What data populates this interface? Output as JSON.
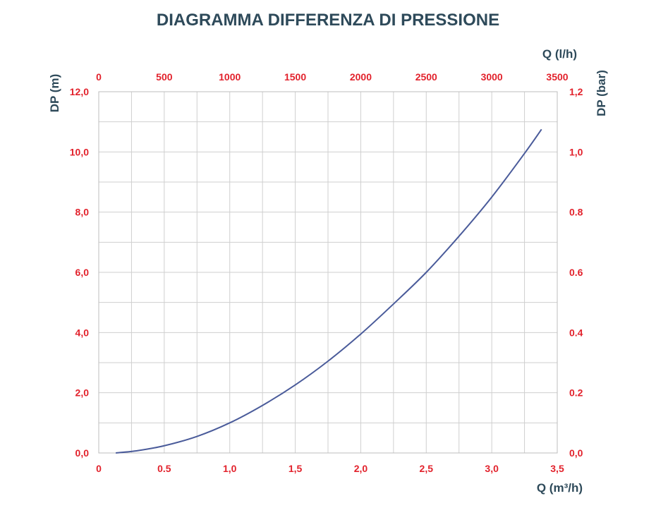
{
  "colors": {
    "title": "#2e4a5a",
    "tick": "#e2222c",
    "grid": "#cfcfcf",
    "curve": "#4a5b9a"
  },
  "chart_data": {
    "type": "line",
    "title": "DIAGRAMMA DIFFERENZA DI PRESSIONE",
    "xlabel": "Q (m³/h)",
    "x2label": "Q (l/h)",
    "ylabel": "DP (m)",
    "y2label": "DP (bar)",
    "xlim": [
      0,
      3.5
    ],
    "x2lim": [
      0,
      3500
    ],
    "ylim": [
      0,
      12
    ],
    "y2lim": [
      0,
      1.2
    ],
    "grid": true,
    "x_ticks": [
      "0",
      "0.5",
      "1,0",
      "1,5",
      "2,0",
      "2,5",
      "3,0",
      "3,5"
    ],
    "x2_ticks": [
      "0",
      "500",
      "1000",
      "1500",
      "2000",
      "2500",
      "3000",
      "3500"
    ],
    "y_ticks": [
      "0,0",
      "2,0",
      "4,0",
      "6,0",
      "8,0",
      "10,0",
      "12,0"
    ],
    "y2_ticks": [
      "0,0",
      "0.2",
      "0.4",
      "0.6",
      "0.8",
      "1,0",
      "1,2"
    ],
    "series": [
      {
        "x": [
          0.13,
          0.3,
          0.5,
          0.75,
          1.0,
          1.25,
          1.5,
          1.75,
          2.0,
          2.25,
          2.5,
          2.75,
          3.0,
          3.25,
          3.38
        ],
        "y": [
          0.0,
          0.08,
          0.24,
          0.55,
          1.0,
          1.58,
          2.26,
          3.05,
          3.95,
          4.95,
          6.0,
          7.2,
          8.5,
          9.95,
          10.75
        ]
      }
    ]
  }
}
